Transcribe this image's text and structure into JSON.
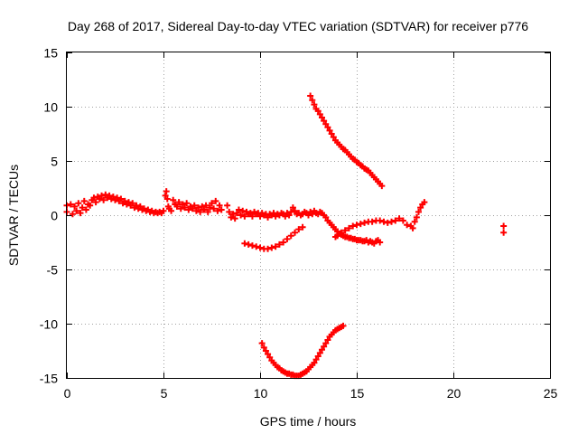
{
  "chart_data": {
    "type": "scatter",
    "title": "Day 268 of 2017, Sidereal Day-to-day VTEC variation (SDTVAR) for receiver p776",
    "xlabel": "GPS time / hours",
    "ylabel": "SDTVAR / TECUs",
    "xlim": [
      0,
      25
    ],
    "ylim": [
      -15,
      15
    ],
    "x_ticks": [
      0,
      5,
      10,
      15,
      20,
      25
    ],
    "y_ticks": [
      -15,
      -10,
      -5,
      0,
      5,
      10,
      15
    ],
    "grid": true,
    "marker": "plus",
    "colors": {
      "series": "#ff0000",
      "grid": "#a0a0a0",
      "axis": "#000000"
    },
    "series": [
      {
        "points": [
          [
            0.0,
            0.9
          ],
          [
            0.0,
            0.3
          ],
          [
            0.2,
            1.0
          ],
          [
            0.3,
            0.1
          ],
          [
            0.4,
            0.8
          ],
          [
            0.5,
            0.4
          ],
          [
            0.6,
            1.1
          ],
          [
            0.7,
            0.2
          ],
          [
            0.8,
            0.7
          ],
          [
            0.9,
            1.3
          ],
          [
            1.0,
            0.5
          ],
          [
            1.1,
            1.0
          ],
          [
            1.2,
            0.9
          ],
          [
            1.3,
            1.4
          ],
          [
            1.4,
            1.6
          ],
          [
            1.5,
            1.2
          ],
          [
            1.6,
            1.7
          ],
          [
            1.7,
            1.5
          ],
          [
            1.8,
            1.8
          ],
          [
            1.9,
            1.4
          ],
          [
            2.0,
            1.9
          ],
          [
            2.1,
            1.6
          ],
          [
            2.2,
            1.8
          ],
          [
            2.3,
            1.5
          ],
          [
            2.4,
            1.7
          ],
          [
            2.5,
            1.4
          ],
          [
            2.6,
            1.6
          ],
          [
            2.7,
            1.3
          ],
          [
            2.8,
            1.5
          ],
          [
            2.9,
            1.1
          ],
          [
            3.0,
            1.3
          ],
          [
            3.1,
            1.0
          ],
          [
            3.2,
            1.2
          ],
          [
            3.3,
            0.9
          ],
          [
            3.4,
            1.1
          ],
          [
            3.5,
            0.7
          ],
          [
            3.6,
            0.9
          ],
          [
            3.7,
            0.6
          ],
          [
            3.8,
            0.8
          ],
          [
            3.9,
            0.5
          ],
          [
            4.0,
            0.6
          ],
          [
            4.1,
            0.4
          ],
          [
            4.2,
            0.5
          ],
          [
            4.3,
            0.3
          ],
          [
            4.4,
            0.4
          ],
          [
            4.5,
            0.2
          ],
          [
            4.6,
            0.3
          ],
          [
            4.7,
            0.2
          ],
          [
            4.8,
            0.3
          ],
          [
            4.9,
            0.2
          ],
          [
            5.0,
            0.4
          ],
          [
            5.1,
            1.8
          ],
          [
            5.15,
            2.2
          ],
          [
            5.2,
            1.5
          ],
          [
            5.25,
            0.8
          ],
          [
            5.3,
            0.6
          ],
          [
            5.4,
            0.4
          ],
          [
            5.5,
            1.4
          ],
          [
            5.6,
            1.0
          ],
          [
            5.7,
            0.8
          ],
          [
            5.8,
            1.2
          ],
          [
            5.9,
            0.6
          ],
          [
            6.0,
            1.0
          ],
          [
            6.1,
            0.7
          ],
          [
            6.2,
            1.1
          ],
          [
            6.3,
            0.5
          ],
          [
            6.4,
            0.8
          ],
          [
            6.5,
            0.6
          ],
          [
            6.6,
            0.9
          ],
          [
            6.7,
            0.4
          ],
          [
            6.8,
            0.7
          ],
          [
            6.9,
            0.3
          ],
          [
            7.0,
            0.8
          ],
          [
            7.1,
            0.5
          ],
          [
            7.2,
            0.9
          ],
          [
            7.3,
            0.3
          ],
          [
            7.4,
            0.7
          ],
          [
            7.5,
            1.1
          ],
          [
            7.6,
            0.6
          ],
          [
            7.7,
            1.3
          ],
          [
            7.8,
            0.4
          ],
          [
            7.9,
            0.9
          ],
          [
            8.0,
            0.5
          ],
          [
            8.3,
            0.9
          ],
          [
            8.4,
            0.3
          ],
          [
            8.5,
            -0.2
          ],
          [
            8.6,
            0.1
          ],
          [
            8.7,
            -0.3
          ],
          [
            8.8,
            0.2
          ],
          [
            8.9,
            0.5
          ],
          [
            9.0,
            0.0
          ],
          [
            9.1,
            0.4
          ],
          [
            9.2,
            -0.1
          ],
          [
            9.3,
            0.3
          ],
          [
            9.4,
            0.1
          ],
          [
            9.5,
            0.2
          ],
          [
            9.6,
            -0.1
          ],
          [
            9.7,
            0.3
          ],
          [
            9.8,
            0.1
          ],
          [
            9.9,
            0.2
          ],
          [
            10.0,
            -0.1
          ],
          [
            10.1,
            0.2
          ],
          [
            10.2,
            0.0
          ],
          [
            10.3,
            0.1
          ],
          [
            10.4,
            -0.2
          ],
          [
            10.5,
            0.1
          ],
          [
            10.6,
            0.0
          ],
          [
            10.7,
            0.2
          ],
          [
            10.8,
            -0.1
          ],
          [
            10.9,
            0.1
          ],
          [
            11.0,
            0.0
          ],
          [
            11.1,
            0.2
          ],
          [
            11.2,
            0.1
          ],
          [
            11.3,
            -0.1
          ],
          [
            11.4,
            0.2
          ],
          [
            11.5,
            0.0
          ],
          [
            11.6,
            0.3
          ],
          [
            11.7,
            0.7
          ],
          [
            11.8,
            0.4
          ],
          [
            11.9,
            0.1
          ],
          [
            12.0,
            0.2
          ],
          [
            12.1,
            0.0
          ],
          [
            12.2,
            0.1
          ],
          [
            12.3,
            0.3
          ],
          [
            12.4,
            0.2
          ],
          [
            12.5,
            0.0
          ],
          [
            12.6,
            0.3
          ],
          [
            12.7,
            0.1
          ],
          [
            12.8,
            0.4
          ],
          [
            12.9,
            0.2
          ],
          [
            13.0,
            0.1
          ],
          [
            13.1,
            0.3
          ],
          [
            13.2,
            0.2
          ],
          [
            13.3,
            0.0
          ],
          [
            13.4,
            -0.2
          ],
          [
            13.5,
            -0.5
          ],
          [
            13.6,
            -0.7
          ],
          [
            13.7,
            -0.9
          ],
          [
            13.8,
            -1.1
          ],
          [
            13.9,
            -1.3
          ],
          [
            14.0,
            -1.5
          ],
          [
            14.1,
            -1.7
          ],
          [
            14.2,
            -1.8
          ],
          [
            14.3,
            -1.9
          ],
          [
            14.4,
            -2.0
          ],
          [
            14.5,
            -2.0
          ],
          [
            14.6,
            -2.1
          ],
          [
            14.7,
            -2.1
          ],
          [
            14.8,
            -2.2
          ],
          [
            14.9,
            -2.2
          ],
          [
            15.0,
            -2.3
          ],
          [
            15.1,
            -2.3
          ],
          [
            15.2,
            -2.3
          ],
          [
            15.3,
            -2.4
          ],
          [
            15.4,
            -2.4
          ],
          [
            15.5,
            -2.3
          ],
          [
            15.6,
            -2.5
          ],
          [
            15.7,
            -2.4
          ],
          [
            15.8,
            -2.5
          ],
          [
            15.9,
            -2.6
          ],
          [
            16.0,
            -2.4
          ],
          [
            16.1,
            -2.3
          ],
          [
            16.2,
            -2.5
          ],
          [
            9.2,
            -2.6
          ],
          [
            9.4,
            -2.7
          ],
          [
            9.6,
            -2.8
          ],
          [
            9.8,
            -2.9
          ],
          [
            10.0,
            -3.0
          ],
          [
            10.2,
            -3.1
          ],
          [
            10.4,
            -3.1
          ],
          [
            10.6,
            -3.0
          ],
          [
            10.8,
            -2.9
          ],
          [
            11.0,
            -2.7
          ],
          [
            11.2,
            -2.5
          ],
          [
            11.4,
            -2.2
          ],
          [
            11.6,
            -1.9
          ],
          [
            11.8,
            -1.6
          ],
          [
            12.0,
            -1.3
          ],
          [
            12.2,
            -1.1
          ],
          [
            13.9,
            -2.0
          ],
          [
            14.0,
            -1.9
          ],
          [
            14.2,
            -1.6
          ],
          [
            14.4,
            -1.4
          ],
          [
            14.6,
            -1.2
          ],
          [
            14.8,
            -1.0
          ],
          [
            15.0,
            -0.9
          ],
          [
            15.2,
            -0.8
          ],
          [
            15.4,
            -0.7
          ],
          [
            15.6,
            -0.6
          ],
          [
            15.8,
            -0.6
          ],
          [
            16.0,
            -0.5
          ],
          [
            16.2,
            -0.5
          ],
          [
            16.4,
            -0.6
          ],
          [
            16.6,
            -0.7
          ],
          [
            16.8,
            -0.6
          ],
          [
            17.0,
            -0.5
          ],
          [
            17.2,
            -0.3
          ],
          [
            17.4,
            -0.5
          ],
          [
            17.6,
            -0.9
          ],
          [
            17.8,
            -1.0
          ],
          [
            17.9,
            -1.2
          ],
          [
            18.0,
            -0.6
          ],
          [
            18.1,
            -0.2
          ],
          [
            18.2,
            0.3
          ],
          [
            18.3,
            0.7
          ],
          [
            18.4,
            1.0
          ],
          [
            18.5,
            1.2
          ],
          [
            12.6,
            11.0
          ],
          [
            12.7,
            10.6
          ],
          [
            12.8,
            10.2
          ],
          [
            12.9,
            9.8
          ],
          [
            13.0,
            9.6
          ],
          [
            13.1,
            9.3
          ],
          [
            13.2,
            9.0
          ],
          [
            13.3,
            8.7
          ],
          [
            13.4,
            8.4
          ],
          [
            13.5,
            8.1
          ],
          [
            13.6,
            7.8
          ],
          [
            13.7,
            7.5
          ],
          [
            13.8,
            7.2
          ],
          [
            13.9,
            6.9
          ],
          [
            14.0,
            6.7
          ],
          [
            14.1,
            6.5
          ],
          [
            14.2,
            6.3
          ],
          [
            14.3,
            6.1
          ],
          [
            14.4,
            6.0
          ],
          [
            14.5,
            5.8
          ],
          [
            14.6,
            5.6
          ],
          [
            14.7,
            5.4
          ],
          [
            14.8,
            5.2
          ],
          [
            14.9,
            5.1
          ],
          [
            15.0,
            4.9
          ],
          [
            15.1,
            4.8
          ],
          [
            15.2,
            4.6
          ],
          [
            15.3,
            4.5
          ],
          [
            15.4,
            4.3
          ],
          [
            15.5,
            4.2
          ],
          [
            15.6,
            4.1
          ],
          [
            15.7,
            3.9
          ],
          [
            15.8,
            3.7
          ],
          [
            15.9,
            3.5
          ],
          [
            16.0,
            3.3
          ],
          [
            16.1,
            3.1
          ],
          [
            16.2,
            2.9
          ],
          [
            16.3,
            2.7
          ],
          [
            10.1,
            -11.8
          ],
          [
            10.2,
            -12.2
          ],
          [
            10.3,
            -12.5
          ],
          [
            10.4,
            -12.8
          ],
          [
            10.5,
            -13.1
          ],
          [
            10.6,
            -13.4
          ],
          [
            10.7,
            -13.6
          ],
          [
            10.8,
            -13.8
          ],
          [
            10.9,
            -14.0
          ],
          [
            11.0,
            -14.1
          ],
          [
            11.1,
            -14.3
          ],
          [
            11.2,
            -14.4
          ],
          [
            11.3,
            -14.5
          ],
          [
            11.4,
            -14.6
          ],
          [
            11.5,
            -14.6
          ],
          [
            11.6,
            -14.7
          ],
          [
            11.7,
            -14.7
          ],
          [
            11.8,
            -14.8
          ],
          [
            11.9,
            -14.8
          ],
          [
            12.0,
            -14.8
          ],
          [
            12.1,
            -14.7
          ],
          [
            12.2,
            -14.6
          ],
          [
            12.3,
            -14.5
          ],
          [
            12.4,
            -14.4
          ],
          [
            12.5,
            -14.2
          ],
          [
            12.6,
            -14.0
          ],
          [
            12.7,
            -13.8
          ],
          [
            12.8,
            -13.6
          ],
          [
            12.9,
            -13.3
          ],
          [
            13.0,
            -13.0
          ],
          [
            13.1,
            -12.7
          ],
          [
            13.2,
            -12.4
          ],
          [
            13.3,
            -12.1
          ],
          [
            13.4,
            -11.8
          ],
          [
            13.5,
            -11.5
          ],
          [
            13.6,
            -11.2
          ],
          [
            13.7,
            -11.0
          ],
          [
            13.8,
            -10.8
          ],
          [
            13.9,
            -10.6
          ],
          [
            14.0,
            -10.5
          ],
          [
            14.1,
            -10.4
          ],
          [
            14.2,
            -10.3
          ],
          [
            14.3,
            -10.2
          ],
          [
            22.6,
            -1.0
          ],
          [
            22.6,
            -1.6
          ]
        ]
      }
    ]
  }
}
